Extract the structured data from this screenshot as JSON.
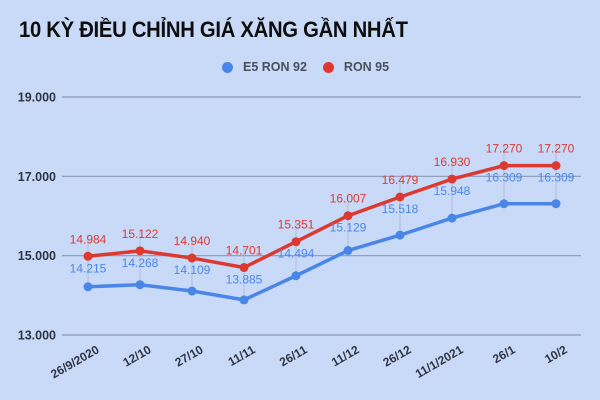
{
  "title": "10 KỲ ĐIỀU CHỈNH GIÁ XĂNG GẦN NHẤT",
  "legend": [
    {
      "label": "E5 RON 92",
      "color": "#4a86e8"
    },
    {
      "label": "RON 95",
      "color": "#dc3a31"
    }
  ],
  "chart_data": {
    "type": "line",
    "title": "10 KỲ ĐIỀU CHỈNH GIÁ XĂNG GẦN NHẤT",
    "xlabel": "",
    "ylabel": "",
    "categories": [
      "26/9/2020",
      "12/10",
      "27/10",
      "11/11",
      "26/11",
      "11/12",
      "26/12",
      "11/1/2021",
      "26/1",
      "10/2"
    ],
    "series": [
      {
        "name": "E5 RON 92",
        "color": "#4a86e8",
        "values": [
          14215,
          14268,
          14109,
          13885,
          14494,
          15129,
          15518,
          15948,
          16309,
          16309
        ],
        "labels": [
          "14.215",
          "14.268",
          "14.109",
          "13.885",
          "14.494",
          "15.129",
          "15.518",
          "15.948",
          "16.309",
          "16.309"
        ]
      },
      {
        "name": "RON 95",
        "color": "#dc3a31",
        "values": [
          14984,
          15122,
          14940,
          14701,
          15351,
          16007,
          16479,
          16930,
          17270,
          17270
        ],
        "labels": [
          "14.984",
          "15.122",
          "14.940",
          "14.701",
          "15.351",
          "16.007",
          "16.479",
          "16.930",
          "17.270",
          "17.270"
        ]
      }
    ],
    "yticks": [
      13000,
      15000,
      17000,
      19000
    ],
    "ytick_labels": [
      "13.000",
      "15.000",
      "17.000",
      "19.000"
    ],
    "ylim": [
      13000,
      19000
    ],
    "grid": true,
    "legend_position": "top"
  }
}
